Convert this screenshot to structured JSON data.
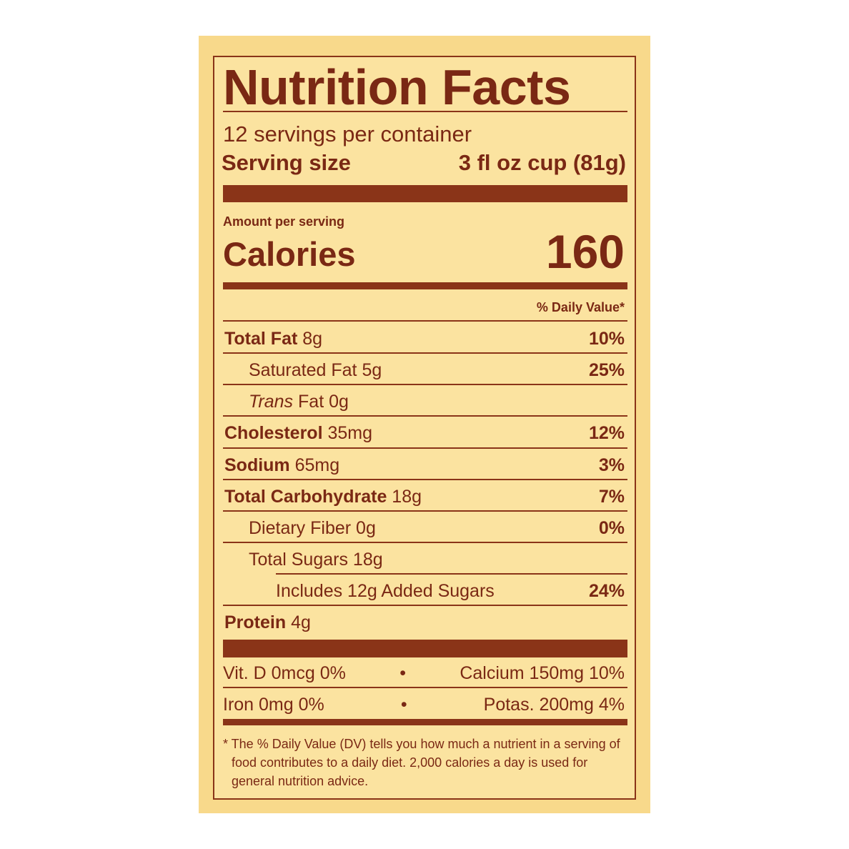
{
  "title": "Nutrition Facts",
  "servings_per_container": "12 servings per container",
  "serving_size": {
    "label": "Serving size",
    "value": "3 fl oz cup (81g)"
  },
  "amount_per_serving": "Amount per serving",
  "calories": {
    "label": "Calories",
    "value": "160"
  },
  "daily_value_header": "% Daily Value*",
  "nutrients": [
    {
      "name": "Total Fat",
      "amount": "8g",
      "dv": "10%"
    },
    {
      "name": "Saturated Fat",
      "amount": "5g",
      "dv": "25%"
    },
    {
      "name": "Trans",
      "name_suffix": "Fat",
      "amount": "0g",
      "dv": ""
    },
    {
      "name": "Cholesterol",
      "amount": "35mg",
      "dv": "12%"
    },
    {
      "name": "Sodium",
      "amount": "65mg",
      "dv": "3%"
    },
    {
      "name": "Total Carbohydrate",
      "amount": "18g",
      "dv": "7%"
    },
    {
      "name": "Dietary Fiber",
      "amount": "0g",
      "dv": "0%"
    },
    {
      "name": "Total Sugars",
      "amount": "18g",
      "dv": ""
    },
    {
      "name": "Includes 12g Added Sugars",
      "amount": "",
      "dv": "24%"
    },
    {
      "name": "Protein",
      "amount": "4g",
      "dv": ""
    }
  ],
  "minerals": [
    {
      "left": "Vit. D 0mcg 0%",
      "right": "Calcium 150mg 10%"
    },
    {
      "left": "Iron 0mg 0%",
      "right": "Potas. 200mg 4%"
    }
  ],
  "separator": "•",
  "footnote": "* The % Daily Value (DV) tells you how much a nutrient in a serving of food contributes to a daily diet. 2,000 calories a day is used for general nutrition advice.",
  "colors": {
    "ink": "#7a2814",
    "label_bg": "#fbe3a0",
    "panel_bg": "#f8d98b"
  }
}
